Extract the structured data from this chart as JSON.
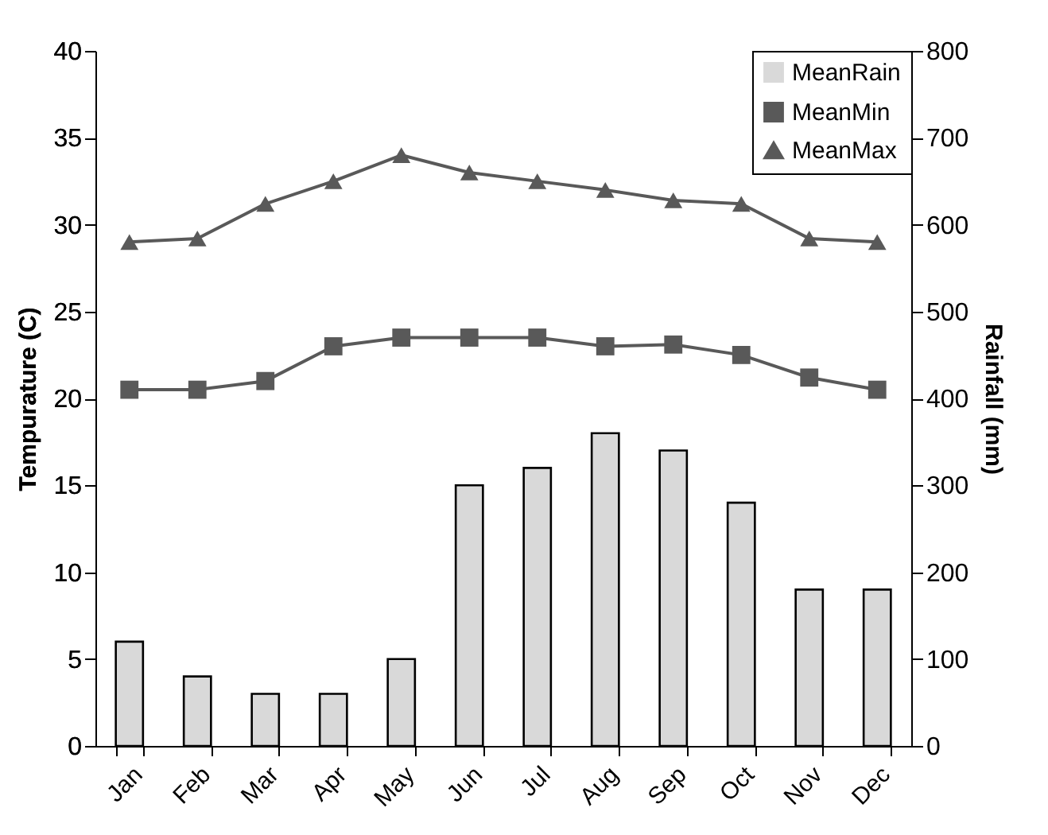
{
  "chart_data": {
    "type": "bar",
    "categories": [
      "Jan",
      "Feb",
      "Mar",
      "Apr",
      "May",
      "Jun",
      "Jul",
      "Aug",
      "Sep",
      "Oct",
      "Nov",
      "Dec"
    ],
    "ylabel": "Tempurature (C)",
    "y2label": "Rainfall (mm)",
    "ylim": [
      0,
      40
    ],
    "yticks": [
      0,
      5,
      10,
      15,
      20,
      25,
      30,
      35,
      40
    ],
    "y2lim": [
      0,
      800
    ],
    "y2ticks": [
      0,
      100,
      200,
      300,
      400,
      500,
      600,
      700,
      800
    ],
    "grid": false,
    "legend": "top right",
    "series": [
      {
        "name": "MeanRain",
        "axis": "y2",
        "color": "#d9d9d9",
        "values": [
          120,
          80,
          60,
          60,
          100,
          300,
          320,
          360,
          340,
          280,
          180,
          180
        ]
      },
      {
        "name": "MeanMin",
        "type": "line",
        "marker": "square",
        "color": "#595959",
        "values": [
          20.5,
          20.5,
          21,
          23,
          23.5,
          23.5,
          23.5,
          23,
          23.1,
          22.5,
          21.2,
          20.5
        ]
      },
      {
        "name": "MeanMax",
        "type": "line",
        "marker": "triangle",
        "color": "#595959",
        "values": [
          29,
          29.2,
          31.2,
          32.5,
          34,
          33,
          32.5,
          32,
          31.4,
          31.2,
          29.2,
          29
        ]
      }
    ]
  }
}
